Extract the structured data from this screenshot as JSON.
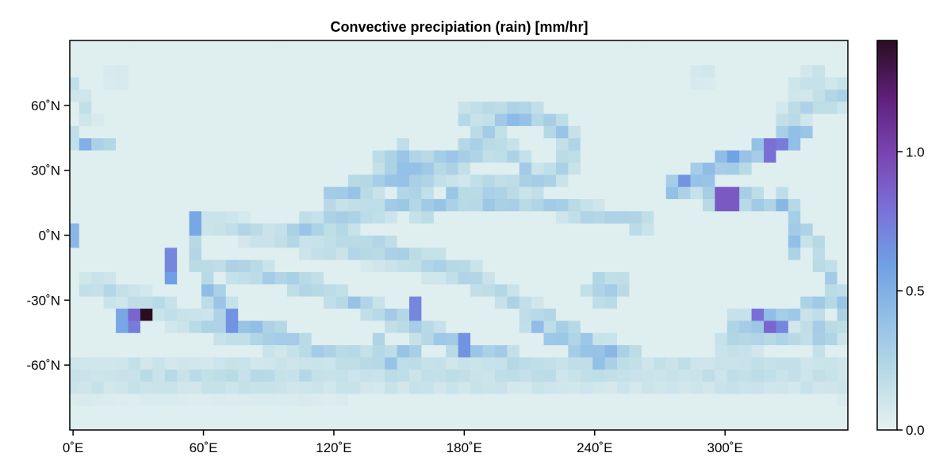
{
  "chart_data": {
    "type": "heatmap",
    "title": "Convective precipiation (rain) [mm/hr]",
    "xlabel": "",
    "ylabel": "",
    "x_ticks": [
      {
        "value": 0,
        "label": "0˚E"
      },
      {
        "value": 60,
        "label": "60˚E"
      },
      {
        "value": 120,
        "label": "120˚E"
      },
      {
        "value": 180,
        "label": "180˚E"
      },
      {
        "value": 240,
        "label": "240˚E"
      },
      {
        "value": 300,
        "label": "300˚E"
      }
    ],
    "y_ticks": [
      {
        "value": 60,
        "label": "60˚N"
      },
      {
        "value": 30,
        "label": "30˚N"
      },
      {
        "value": 0,
        "label": "0˚N"
      },
      {
        "value": -30,
        "label": "-30˚N"
      },
      {
        "value": -60,
        "label": "-60˚N"
      }
    ],
    "xlim": [
      -1.5,
      356.5
    ],
    "ylim": [
      -90,
      90
    ],
    "grid_resolution_deg": 5.625,
    "colorbar": {
      "range": [
        0.0,
        1.4
      ],
      "ticks": [
        {
          "value": 0.0,
          "label": "0.0"
        },
        {
          "value": 0.5,
          "label": "0.5"
        },
        {
          "value": 1.0,
          "label": "1.0"
        }
      ],
      "colormap": [
        "#e6f1f1",
        "#b9dbe6",
        "#93c0e7",
        "#6f9fe4",
        "#7a6fd6",
        "#7a43b0",
        "#5e1f78",
        "#2a0d22"
      ]
    },
    "background_value": 0.03,
    "features": [
      {
        "kind": "band",
        "path": [
          [
            8,
            -22
          ],
          [
            30,
            -30
          ],
          [
            55,
            -40
          ],
          [
            85,
            -47
          ],
          [
            112,
            -54
          ],
          [
            135,
            -58
          ],
          [
            155,
            -60
          ]
        ],
        "value": 0.22,
        "width": 6
      },
      {
        "kind": "band",
        "path": [
          [
            62,
            -26
          ],
          [
            72,
            -38
          ],
          [
            82,
            -44
          ],
          [
            95,
            -47
          ]
        ],
        "value": 0.52,
        "width": 4
      },
      {
        "kind": "band",
        "path": [
          [
            95,
            -45
          ],
          [
            110,
            -53
          ],
          [
            130,
            -56
          ],
          [
            150,
            -58
          ]
        ],
        "value": 0.38,
        "width": 4
      },
      {
        "kind": "band",
        "path": [
          [
            70,
            -15
          ],
          [
            105,
            -22
          ],
          [
            140,
            -35
          ],
          [
            165,
            -46
          ],
          [
            185,
            -54
          ],
          [
            205,
            -58
          ]
        ],
        "value": 0.3,
        "width": 5
      },
      {
        "kind": "band",
        "path": [
          [
            105,
            5
          ],
          [
            140,
            -5
          ],
          [
            175,
            -15
          ],
          [
            200,
            -28
          ],
          [
            220,
            -40
          ],
          [
            240,
            -50
          ],
          [
            255,
            -55
          ]
        ],
        "value": 0.28,
        "width": 5
      },
      {
        "kind": "band",
        "path": [
          [
            210,
            -40
          ],
          [
            228,
            -50
          ],
          [
            245,
            -55
          ]
        ],
        "value": 0.5,
        "width": 3
      },
      {
        "kind": "band",
        "path": [
          [
            175,
            -50
          ],
          [
            190,
            -55
          ],
          [
            205,
            -57
          ]
        ],
        "value": 0.5,
        "width": 3
      },
      {
        "kind": "band",
        "path": [
          [
            140,
            -50
          ],
          [
            155,
            -53
          ]
        ],
        "value": 0.45,
        "width": 3
      },
      {
        "kind": "band",
        "path": [
          [
            0,
            -62
          ],
          [
            60,
            -64
          ],
          [
            120,
            -63
          ],
          [
            180,
            -62
          ],
          [
            240,
            -62
          ],
          [
            300,
            -62
          ],
          [
            358,
            -62
          ]
        ],
        "value": 0.2,
        "width": 6
      },
      {
        "kind": "band",
        "path": [
          [
            0,
            -70
          ],
          [
            120,
            -70
          ],
          [
            240,
            -69
          ],
          [
            358,
            -70
          ]
        ],
        "value": 0.12,
        "width": 6
      },
      {
        "kind": "band",
        "path": [
          [
            60,
            8
          ],
          [
            80,
            2
          ],
          [
            100,
            -2
          ],
          [
            120,
            -6
          ],
          [
            140,
            -10
          ],
          [
            160,
            -14
          ],
          [
            190,
            -20
          ]
        ],
        "value": 0.2,
        "width": 6
      },
      {
        "kind": "band",
        "path": [
          [
            55,
            -5
          ],
          [
            60,
            -18
          ],
          [
            68,
            -28
          ],
          [
            72,
            -35
          ]
        ],
        "value": 0.3,
        "width": 4
      },
      {
        "kind": "band",
        "path": [
          [
            100,
            0
          ],
          [
            120,
            8
          ],
          [
            150,
            14
          ],
          [
            180,
            14
          ],
          [
            210,
            16
          ],
          [
            240,
            10
          ],
          [
            265,
            6
          ]
        ],
        "value": 0.3,
        "width": 5
      },
      {
        "kind": "band",
        "path": [
          [
            120,
            18
          ],
          [
            140,
            24
          ],
          [
            160,
            32
          ],
          [
            178,
            38
          ],
          [
            185,
            45
          ],
          [
            195,
            52
          ],
          [
            212,
            55
          ]
        ],
        "value": 0.35,
        "width": 5
      },
      {
        "kind": "band",
        "path": [
          [
            140,
            35
          ],
          [
            155,
            28
          ],
          [
            160,
            20
          ],
          [
            162,
            10
          ]
        ],
        "value": 0.32,
        "width": 5
      },
      {
        "kind": "band",
        "path": [
          [
            175,
            20
          ],
          [
            195,
            22
          ],
          [
            215,
            25
          ],
          [
            225,
            30
          ],
          [
            230,
            40
          ],
          [
            225,
            48
          ],
          [
            215,
            55
          ],
          [
            200,
            58
          ],
          [
            180,
            56
          ]
        ],
        "value": 0.3,
        "width": 5
      },
      {
        "kind": "band",
        "path": [
          [
            160,
            25
          ],
          [
            175,
            30
          ],
          [
            185,
            38
          ],
          [
            195,
            40
          ],
          [
            205,
            36
          ],
          [
            210,
            30
          ]
        ],
        "value": 0.28,
        "width": 5
      },
      {
        "kind": "band",
        "path": [
          [
            275,
            20
          ],
          [
            292,
            32
          ],
          [
            310,
            38
          ],
          [
            325,
            45
          ],
          [
            335,
            48
          ]
        ],
        "value": 0.6,
        "width": 4
      },
      {
        "kind": "band",
        "path": [
          [
            275,
            22
          ],
          [
            290,
            28
          ],
          [
            305,
            32
          ],
          [
            320,
            38
          ]
        ],
        "value": 0.4,
        "width": 4
      },
      {
        "kind": "band",
        "path": [
          [
            290,
            18
          ],
          [
            305,
            17
          ],
          [
            318,
            16
          ],
          [
            330,
            12
          ],
          [
            333,
            0
          ],
          [
            333,
            -10
          ]
        ],
        "value": 0.42,
        "width": 4
      },
      {
        "kind": "band",
        "path": [
          [
            325,
            18
          ],
          [
            335,
            5
          ],
          [
            345,
            -10
          ],
          [
            350,
            -25
          ],
          [
            355,
            -35
          ]
        ],
        "value": 0.3,
        "width": 4
      },
      {
        "kind": "band",
        "path": [
          [
            305,
            -40
          ],
          [
            318,
            -40
          ],
          [
            330,
            -36
          ],
          [
            345,
            -30
          ],
          [
            356,
            -30
          ]
        ],
        "value": 0.35,
        "width": 4
      },
      {
        "kind": "band",
        "path": [
          [
            300,
            -50
          ],
          [
            320,
            -48
          ],
          [
            340,
            -46
          ],
          [
            356,
            -45
          ]
        ],
        "value": 0.25,
        "width": 5
      },
      {
        "kind": "band",
        "path": [
          [
            330,
            55
          ],
          [
            340,
            60
          ],
          [
            355,
            65
          ]
        ],
        "value": 0.25,
        "width": 6
      },
      {
        "kind": "band",
        "path": [
          [
            0,
            45
          ],
          [
            8,
            40
          ],
          [
            15,
            42
          ]
        ],
        "value": 0.3,
        "width": 4
      },
      {
        "kind": "band",
        "path": [
          [
            0,
            70
          ],
          [
            5,
            62
          ],
          [
            8,
            55
          ]
        ],
        "value": 0.15,
        "width": 4
      },
      {
        "kind": "blob",
        "lon": 152,
        "lat": 32,
        "r": 11,
        "value": 0.45
      },
      {
        "kind": "blob",
        "lon": 155,
        "lat": 25,
        "r": 9,
        "value": 0.4
      },
      {
        "kind": "blob",
        "lon": 245,
        "lat": -25,
        "r": 10,
        "value": 0.32
      },
      {
        "kind": "blob",
        "lon": 330,
        "lat": 45,
        "r": 8,
        "value": 0.55
      },
      {
        "kind": "blob",
        "lon": 318,
        "lat": -40,
        "r": 7,
        "value": 0.55
      },
      {
        "kind": "blob",
        "lon": 345,
        "lat": -45,
        "r": 9,
        "value": 0.35
      },
      {
        "kind": "blob",
        "lon": 290,
        "lat": 28,
        "r": 6,
        "value": 0.5
      },
      {
        "kind": "blob",
        "lon": 245,
        "lat": -55,
        "r": 7,
        "value": 0.55
      },
      {
        "kind": "blob",
        "lon": 340,
        "lat": 70,
        "r": 10,
        "value": 0.18
      },
      {
        "kind": "blob",
        "lon": 20,
        "lat": 75,
        "r": 6,
        "value": 0.12
      },
      {
        "kind": "blob",
        "lon": 290,
        "lat": 75,
        "r": 6,
        "value": 0.1
      },
      {
        "kind": "cell",
        "lon": 33.75,
        "lat": -36.5625,
        "value": 1.4
      },
      {
        "kind": "cell",
        "lon": 28.125,
        "lat": -36.5625,
        "value": 0.85
      },
      {
        "kind": "cell",
        "lon": 28.125,
        "lat": -39.375,
        "value": 0.75
      },
      {
        "kind": "cell",
        "lon": 22.5,
        "lat": -39.375,
        "value": 0.55
      },
      {
        "kind": "cell",
        "lon": 45,
        "lat": -11.25,
        "value": 0.7
      },
      {
        "kind": "cell",
        "lon": 45,
        "lat": -19.6875,
        "value": 0.6
      },
      {
        "kind": "cell",
        "lon": 56.25,
        "lat": 5.625,
        "value": 0.55
      },
      {
        "kind": "cell",
        "lon": 5.625,
        "lat": 42.1875,
        "value": 0.5
      },
      {
        "kind": "cell",
        "lon": 0,
        "lat": 0,
        "value": 0.45
      },
      {
        "kind": "cell",
        "lon": 157.5,
        "lat": -33.75,
        "value": 0.7
      },
      {
        "kind": "cell",
        "lon": 298.125,
        "lat": 16.875,
        "value": 0.9
      },
      {
        "kind": "cell",
        "lon": 303.75,
        "lat": 16.875,
        "value": 0.9
      },
      {
        "kind": "cell",
        "lon": 320.625,
        "lat": 39.375,
        "value": 0.8
      },
      {
        "kind": "cell",
        "lon": 326.25,
        "lat": 42.1875,
        "value": 0.75
      },
      {
        "kind": "cell",
        "lon": 315,
        "lat": -36.5625,
        "value": 0.8
      },
      {
        "kind": "cell",
        "lon": 320.625,
        "lat": -42.1875,
        "value": 0.85
      },
      {
        "kind": "cell",
        "lon": 326.25,
        "lat": -42.1875,
        "value": 0.7
      },
      {
        "kind": "cell",
        "lon": 73.125,
        "lat": -39.375,
        "value": 0.65
      },
      {
        "kind": "cell",
        "lon": 180,
        "lat": -50.625,
        "value": 0.65
      }
    ]
  }
}
